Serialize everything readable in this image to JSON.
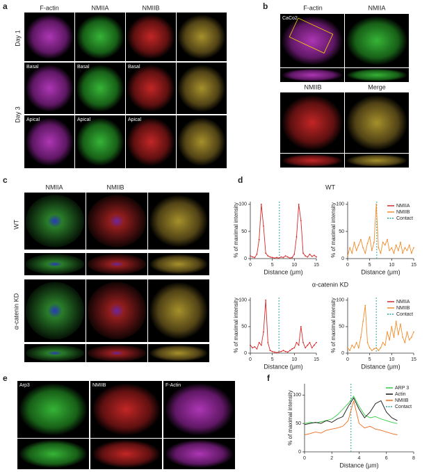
{
  "panels": {
    "a": {
      "label": "a",
      "columns": [
        "F-actin",
        "NMIIA",
        "NMIIB"
      ],
      "rows": [
        "Day 1",
        "Day 3"
      ],
      "insets": [
        "Basal",
        "Basal",
        "Basal",
        "Apical",
        "Apical",
        "Apical"
      ]
    },
    "b": {
      "label": "b",
      "columns": [
        "F-actin",
        "NMIIA",
        "NMIIB",
        "Merge"
      ],
      "cell_line": "CaCo2"
    },
    "c": {
      "label": "c",
      "columns": [
        "NMIIA",
        "NMIIB"
      ],
      "rows": [
        "WT",
        "α-catenin KD"
      ]
    },
    "d": {
      "label": "d",
      "titles": [
        "WT",
        "α-catenin KD"
      ]
    },
    "e": {
      "label": "e",
      "columns": [
        "Arp3",
        "NMIIB",
        "F-Actin"
      ]
    },
    "f": {
      "label": "f"
    }
  },
  "chart_data": [
    {
      "type": "line",
      "xlabel": "Distance (μm)",
      "ylabel": "% of maximal intensity",
      "xlim": [
        0,
        15
      ],
      "ylim": [
        0,
        105
      ],
      "xticks": [
        0,
        5,
        10,
        15
      ],
      "yticks": [
        0,
        50,
        100
      ],
      "x": [
        0,
        0.5,
        1,
        1.5,
        2,
        2.5,
        3,
        3.5,
        4,
        4.5,
        5,
        5.5,
        6,
        6.5,
        7,
        7.5,
        8,
        8.5,
        9,
        9.5,
        10,
        10.5,
        11,
        11.5,
        12,
        12.5,
        13,
        13.5,
        14,
        14.5,
        15
      ],
      "series": [
        {
          "color": "#d62728",
          "values": [
            5,
            3,
            2,
            8,
            35,
            100,
            60,
            10,
            5,
            3,
            2,
            1,
            2,
            1,
            3,
            2,
            5,
            3,
            1,
            2,
            8,
            40,
            100,
            70,
            10,
            5,
            3,
            8,
            4,
            6,
            3
          ]
        }
      ],
      "contact": {
        "x": 6.6,
        "color": "#2ca89a"
      }
    },
    {
      "type": "line",
      "xlabel": "Distance (μm)",
      "ylabel": "% of maximal intensity",
      "xlim": [
        0,
        15
      ],
      "ylim": [
        0,
        105
      ],
      "xticks": [
        0,
        5,
        10,
        15
      ],
      "yticks": [
        0,
        50,
        100
      ],
      "x": [
        0,
        0.5,
        1,
        1.5,
        2,
        2.5,
        3,
        3.5,
        4,
        4.5,
        5,
        5.5,
        6,
        6.5,
        7,
        7.5,
        8,
        8.5,
        9,
        9.5,
        10,
        10.5,
        11,
        11.5,
        12,
        12.5,
        13,
        13.5,
        14,
        14.5,
        15
      ],
      "series": [
        {
          "color": "#f28c28",
          "values": [
            5,
            20,
            10,
            30,
            15,
            25,
            35,
            20,
            10,
            28,
            40,
            15,
            30,
            100,
            20,
            10,
            30,
            25,
            35,
            15,
            20,
            10,
            25,
            15,
            30,
            10,
            20,
            15,
            25,
            10,
            20
          ]
        }
      ],
      "contact": {
        "x": 6.6,
        "color": "#2ca89a"
      },
      "legend": [
        {
          "name": "NMIIA",
          "color": "#d62728"
        },
        {
          "name": "NMIIB",
          "color": "#f28c28"
        },
        {
          "name": "Contact",
          "color": "#2ca89a"
        }
      ]
    },
    {
      "type": "line",
      "xlabel": "Distance (μm)",
      "ylabel": "% of maximal intensity",
      "xlim": [
        0,
        15
      ],
      "ylim": [
        0,
        105
      ],
      "xticks": [
        0,
        5,
        10,
        15
      ],
      "yticks": [
        0,
        50,
        100
      ],
      "x": [
        0,
        0.5,
        1,
        1.5,
        2,
        2.5,
        3,
        3.5,
        4,
        4.5,
        5,
        5.5,
        6,
        6.5,
        7,
        7.5,
        8,
        8.5,
        9,
        9.5,
        10,
        10.5,
        11,
        11.5,
        12,
        12.5,
        13,
        13.5,
        14,
        14.5,
        15
      ],
      "series": [
        {
          "color": "#d62728",
          "values": [
            15,
            10,
            12,
            8,
            20,
            15,
            40,
            100,
            20,
            5,
            3,
            2,
            1,
            2,
            3,
            5,
            3,
            2,
            5,
            8,
            10,
            20,
            15,
            50,
            20,
            10,
            15,
            20,
            10,
            15,
            20
          ]
        }
      ],
      "contact": {
        "x": 6.5,
        "color": "#2ca89a"
      }
    },
    {
      "type": "line",
      "xlabel": "Distance (μm)",
      "ylabel": "% of maximal intensity",
      "xlim": [
        0,
        15
      ],
      "ylim": [
        0,
        105
      ],
      "xticks": [
        0,
        5,
        10,
        15
      ],
      "yticks": [
        0,
        50,
        100
      ],
      "x": [
        0,
        0.5,
        1,
        1.5,
        2,
        2.5,
        3,
        3.5,
        4,
        4.5,
        5,
        5.5,
        6,
        6.5,
        7,
        7.5,
        8,
        8.5,
        9,
        9.5,
        10,
        10.5,
        11,
        11.5,
        12,
        12.5,
        13,
        13.5,
        14,
        14.5,
        15
      ],
      "series": [
        {
          "color": "#f28c28",
          "values": [
            10,
            5,
            15,
            10,
            20,
            10,
            30,
            60,
            90,
            20,
            10,
            5,
            8,
            10,
            5,
            10,
            20,
            15,
            40,
            25,
            50,
            30,
            60,
            35,
            55,
            30,
            20,
            40,
            25,
            30,
            40
          ]
        }
      ],
      "contact": {
        "x": 6.5,
        "color": "#2ca89a"
      },
      "legend": [
        {
          "name": "NMIIA",
          "color": "#d62728"
        },
        {
          "name": "NMIIB",
          "color": "#f28c28"
        },
        {
          "name": "Contact",
          "color": "#2ca89a"
        }
      ]
    },
    {
      "type": "line",
      "xlabel": "Distance (μm)",
      "ylabel": "% of maximal intensity",
      "xlim": [
        0,
        8
      ],
      "ylim": [
        0,
        120
      ],
      "xticks": [
        0,
        2,
        4,
        6,
        8
      ],
      "yticks": [
        0,
        50,
        100
      ],
      "x": [
        0,
        0.4,
        0.8,
        1.2,
        1.6,
        2,
        2.4,
        2.8,
        3.2,
        3.6,
        4,
        4.4,
        4.8,
        5.2,
        5.6,
        6,
        6.4,
        6.8
      ],
      "series": [
        {
          "color": "#2ecc40",
          "values": [
            50,
            52,
            51,
            53,
            55,
            58,
            65,
            75,
            85,
            98,
            80,
            65,
            60,
            62,
            58,
            55,
            52,
            50
          ]
        },
        {
          "color": "#111111",
          "values": [
            48,
            50,
            52,
            50,
            55,
            52,
            58,
            62,
            80,
            95,
            75,
            60,
            70,
            85,
            90,
            70,
            60,
            55
          ]
        },
        {
          "color": "#f26b1d",
          "values": [
            30,
            32,
            35,
            33,
            38,
            40,
            42,
            45,
            55,
            90,
            50,
            42,
            45,
            40,
            38,
            35,
            32,
            30
          ]
        }
      ],
      "contact": {
        "x": 3.4,
        "color": "#2ca89a"
      },
      "legend": [
        {
          "name": "ARP 3",
          "color": "#2ecc40"
        },
        {
          "name": "Actin",
          "color": "#111111"
        },
        {
          "name": "NMIIB",
          "color": "#f26b1d"
        },
        {
          "name": "Contact",
          "color": "#2ca89a"
        }
      ]
    }
  ]
}
